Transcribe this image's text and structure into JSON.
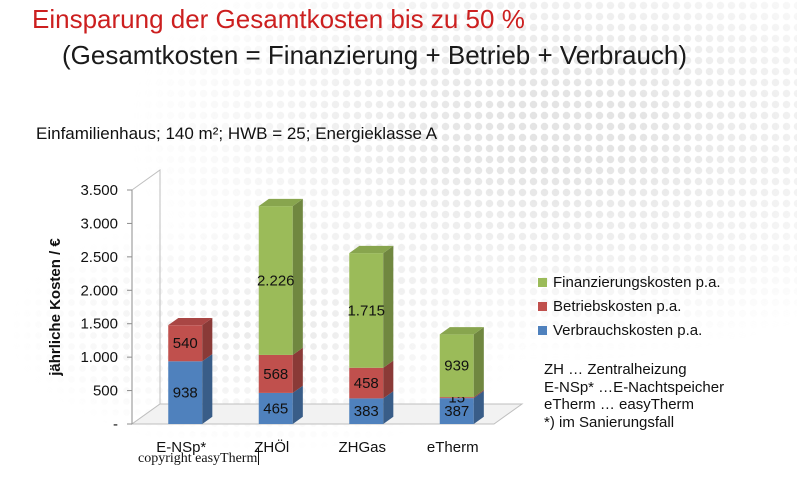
{
  "slide": {
    "title": "Einsparung der Gesamtkosten bis zu 50 %",
    "subtitle": "(Gesamtkosten = Finanzierung + Betrieb + Verbrauch)",
    "copyright": "copyright easyTherm"
  },
  "chart_data": {
    "type": "bar",
    "stacked": true,
    "three_d": true,
    "subtitle": "Einfamilienhaus;  140 m²; HWB = 25; Energieklasse A",
    "ylabel": "jährliche Kosten / €",
    "xlabel": "",
    "ylim": [
      0,
      3500
    ],
    "yticks": [
      0,
      500,
      1000,
      1500,
      2000,
      2500,
      3000,
      3500
    ],
    "ytick_labels": [
      "-",
      "500",
      "1.000",
      "1.500",
      "2.000",
      "2.500",
      "3.000",
      "3.500"
    ],
    "categories": [
      "E-NSp*",
      "ZHÖl",
      "ZHGas",
      "eTherm"
    ],
    "series": [
      {
        "name": "Verbrauchskosten p.a.",
        "color": "#4f81bd",
        "values": [
          938,
          465,
          383,
          387
        ],
        "labels": [
          "938",
          "465",
          "383",
          "387"
        ]
      },
      {
        "name": "Betriebskosten p.a.",
        "color": "#c0504d",
        "values": [
          540,
          568,
          458,
          15
        ],
        "labels": [
          "540",
          "568",
          "458",
          "15"
        ]
      },
      {
        "name": "Finanzierungskosten p.a.",
        "color": "#9bbb59",
        "values": [
          0,
          2226,
          1715,
          939
        ],
        "labels": [
          "-",
          "2.226",
          "1.715",
          "939"
        ]
      }
    ],
    "legend_position": "right",
    "grid": false
  },
  "notes": [
    "ZH … Zentralheizung",
    "E-NSp* …E-Nachtspeicher",
    "eTherm … easyTherm",
    "*) im Sanierungsfall"
  ]
}
